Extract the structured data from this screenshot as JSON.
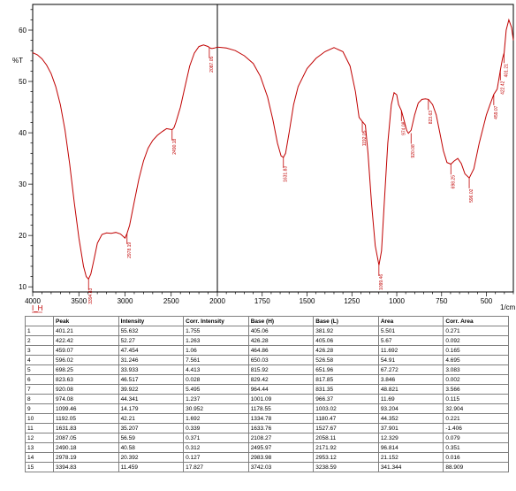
{
  "chart_data": {
    "type": "line",
    "ylabel": "%T",
    "xlabel": "1/cm",
    "series_label": "I_H",
    "x_reversed": true,
    "xlim": [
      4000,
      350
    ],
    "ylim": [
      9,
      65
    ],
    "x_ticks": [
      4000,
      3500,
      3000,
      2500,
      2000,
      1750,
      1500,
      1250,
      1000,
      750,
      500
    ],
    "y_ticks": [
      10,
      20,
      30,
      40,
      50,
      60
    ],
    "grid": false,
    "line_color": "#c00000",
    "x": [
      4000,
      3950,
      3900,
      3850,
      3800,
      3750,
      3700,
      3650,
      3600,
      3550,
      3500,
      3450,
      3420,
      3395,
      3370,
      3340,
      3300,
      3250,
      3200,
      3150,
      3100,
      3050,
      3000,
      2978,
      2950,
      2900,
      2850,
      2800,
      2750,
      2700,
      2650,
      2600,
      2550,
      2520,
      2490,
      2470,
      2450,
      2400,
      2350,
      2300,
      2250,
      2200,
      2150,
      2100,
      2087,
      2060,
      2030,
      2000,
      1950,
      1900,
      1850,
      1800,
      1760,
      1720,
      1690,
      1665,
      1645,
      1632,
      1620,
      1600,
      1575,
      1550,
      1500,
      1450,
      1400,
      1350,
      1300,
      1260,
      1230,
      1210,
      1192,
      1175,
      1160,
      1140,
      1120,
      1099,
      1085,
      1070,
      1050,
      1030,
      1015,
      1000,
      990,
      974,
      960,
      945,
      935,
      920,
      900,
      880,
      860,
      840,
      823,
      800,
      780,
      760,
      740,
      720,
      698,
      680,
      660,
      640,
      620,
      596,
      570,
      540,
      500,
      480,
      459,
      440,
      422,
      410,
      401,
      390,
      375,
      360,
      350
    ],
    "values": [
      55.6,
      55.2,
      54.4,
      53.2,
      51.5,
      49.0,
      45.5,
      40.5,
      34.0,
      26.5,
      19.5,
      14.0,
      12.0,
      11.5,
      12.5,
      15.0,
      18.5,
      20.2,
      20.5,
      20.4,
      20.6,
      20.3,
      19.5,
      20.4,
      22.0,
      26.5,
      31.0,
      34.5,
      37.0,
      38.5,
      39.5,
      40.2,
      40.8,
      40.7,
      40.6,
      41.0,
      42.0,
      45.0,
      49.0,
      53.0,
      55.5,
      56.8,
      57.1,
      56.8,
      56.6,
      56.4,
      56.5,
      56.7,
      56.5,
      56.0,
      55.0,
      53.5,
      51.0,
      47.0,
      42.5,
      38.0,
      35.5,
      35.2,
      36.0,
      40.0,
      45.5,
      49.0,
      52.5,
      54.5,
      55.8,
      56.6,
      55.8,
      53.0,
      48.0,
      43.0,
      42.2,
      41.5,
      36.0,
      26.0,
      18.0,
      14.2,
      17.0,
      26.0,
      38.0,
      45.5,
      47.8,
      47.4,
      45.5,
      44.3,
      42.5,
      40.5,
      39.9,
      40.5,
      43.5,
      45.8,
      46.5,
      46.6,
      46.5,
      45.5,
      43.5,
      40.0,
      36.5,
      34.2,
      33.9,
      34.5,
      35.0,
      34.0,
      32.0,
      31.2,
      33.0,
      38.0,
      43.5,
      45.5,
      47.5,
      48.5,
      52.3,
      54.5,
      55.6,
      60.0,
      62.0,
      60.5,
      58.0
    ],
    "peak_labels": [
      {
        "x": 3394.83,
        "y": 11.459,
        "text": "3394.83"
      },
      {
        "x": 2978.19,
        "y": 20.392,
        "text": "2978.19"
      },
      {
        "x": 2490.18,
        "y": 40.58,
        "text": "2490.18"
      },
      {
        "x": 2087.05,
        "y": 56.59,
        "text": "2087.05"
      },
      {
        "x": 1631.83,
        "y": 35.207,
        "text": "1631.83"
      },
      {
        "x": 1192.05,
        "y": 42.21,
        "text": "1192.05"
      },
      {
        "x": 1099.46,
        "y": 14.179,
        "text": "1099.46"
      },
      {
        "x": 974.08,
        "y": 44.341,
        "text": "974.08"
      },
      {
        "x": 920.08,
        "y": 39.922,
        "text": "920.08"
      },
      {
        "x": 823.63,
        "y": 46.517,
        "text": "823.63"
      },
      {
        "x": 698.25,
        "y": 33.933,
        "text": "698.25"
      },
      {
        "x": 596.02,
        "y": 31.246,
        "text": "596.02"
      },
      {
        "x": 459.07,
        "y": 47.454,
        "text": "459.07"
      },
      {
        "x": 422.42,
        "y": 52.27,
        "text": "422.42"
      },
      {
        "x": 401.21,
        "y": 55.632,
        "text": "401.21"
      }
    ]
  },
  "table": {
    "headers": [
      "",
      "Peak",
      "Intensity",
      "Corr. Intensity",
      "Base (H)",
      "Base (L)",
      "Area",
      "Corr. Area"
    ],
    "rows": [
      [
        "1",
        "401.21",
        "55.632",
        "1.755",
        "405.06",
        "381.92",
        "5.501",
        "0.271"
      ],
      [
        "2",
        "422.42",
        "52.27",
        "1.263",
        "426.28",
        "405.06",
        "5.67",
        "0.092"
      ],
      [
        "3",
        "459.07",
        "47.454",
        "1.06",
        "464.86",
        "426.28",
        "11.692",
        "0.165"
      ],
      [
        "4",
        "596.02",
        "31.246",
        "7.561",
        "650.03",
        "526.58",
        "54.91",
        "4.695"
      ],
      [
        "5",
        "698.25",
        "33.933",
        "4.413",
        "815.92",
        "651.96",
        "67.272",
        "3.083"
      ],
      [
        "6",
        "823.63",
        "46.517",
        "0.028",
        "829.42",
        "817.85",
        "3.846",
        "0.002"
      ],
      [
        "7",
        "920.08",
        "39.922",
        "5.495",
        "964.44",
        "831.35",
        "48.821",
        "3.566"
      ],
      [
        "8",
        "974.08",
        "44.341",
        "1.237",
        "1001.09",
        "966.37",
        "11.69",
        "0.115"
      ],
      [
        "9",
        "1099.46",
        "14.179",
        "30.952",
        "1178.55",
        "1003.02",
        "93.204",
        "32.904"
      ],
      [
        "10",
        "1192.05",
        "42.21",
        "1.692",
        "1334.78",
        "1180.47",
        "44.352",
        "0.221"
      ],
      [
        "11",
        "1631.83",
        "35.207",
        "0.339",
        "1633.76",
        "1527.67",
        "37.901",
        "-1.406"
      ],
      [
        "12",
        "2087.05",
        "56.59",
        "0.371",
        "2108.27",
        "2058.11",
        "12.329",
        "0.079"
      ],
      [
        "13",
        "2490.18",
        "40.58",
        "0.312",
        "2495.97",
        "2171.92",
        "96.814",
        "0.351"
      ],
      [
        "14",
        "2978.19",
        "20.392",
        "0.127",
        "2983.98",
        "2953.12",
        "21.152",
        "0.016"
      ],
      [
        "15",
        "3394.83",
        "11.459",
        "17.827",
        "3742.03",
        "3238.59",
        "341.344",
        "88.909"
      ]
    ]
  }
}
